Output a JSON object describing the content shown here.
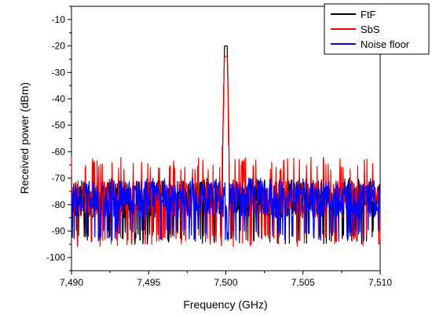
{
  "chart_data": {
    "type": "line",
    "title": "",
    "xlabel": "Frequency (GHz)",
    "ylabel": "Received power (dBm)",
    "xlim": [
      7.49,
      7.51
    ],
    "ylim": [
      -105,
      -5
    ],
    "x_ticks": [
      7.49,
      7.495,
      7.5,
      7.505,
      7.51
    ],
    "x_tick_labels": [
      "7,490",
      "7,495",
      "7,500",
      "7,505",
      "7,510"
    ],
    "y_ticks": [
      -100,
      -90,
      -80,
      -70,
      -60,
      -50,
      -40,
      -30,
      -20,
      -10
    ],
    "y_tick_labels": [
      "-100",
      "-90",
      "-80",
      "-70",
      "-60",
      "-50",
      "-40",
      "-30",
      "-20",
      "-10"
    ],
    "grid": false,
    "legend_position": "top-right",
    "series": [
      {
        "name": "FtF",
        "color": "#000000",
        "noise_level_dbm": -78,
        "noise_range_dbm": [
          -95,
          -70
        ],
        "peak": {
          "x": 7.5,
          "y": -20
        }
      },
      {
        "name": "SbS",
        "color": "#ff0000",
        "noise_level_dbm": -78,
        "noise_range_dbm": [
          -96,
          -62
        ],
        "peak": {
          "x": 7.5,
          "y": -24
        }
      },
      {
        "name": "Noise floor",
        "color": "#0000ff",
        "noise_level_dbm": -78,
        "noise_range_dbm": [
          -94,
          -70
        ]
      }
    ]
  }
}
